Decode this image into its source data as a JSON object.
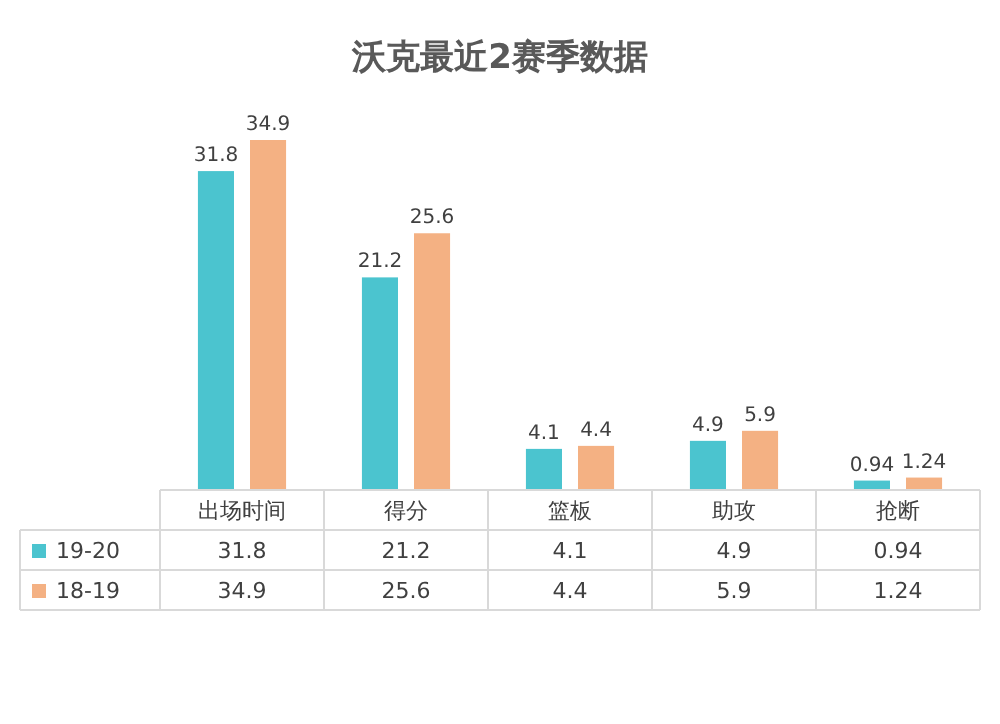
{
  "chart_data": {
    "type": "bar",
    "title": "沃克最近2赛季数据",
    "categories": [
      "出场时间",
      "得分",
      "篮板",
      "助攻",
      "抢断"
    ],
    "series": [
      {
        "name": "19-20",
        "color": "#4bc4cf",
        "values": [
          31.8,
          21.2,
          4.1,
          4.9,
          0.94
        ],
        "value_labels": [
          "31.8",
          "21.2",
          "4.1",
          "4.9",
          "0.94"
        ]
      },
      {
        "name": "18-19",
        "color": "#f4b183",
        "values": [
          34.9,
          25.6,
          4.4,
          5.9,
          1.24
        ],
        "value_labels": [
          "34.9",
          "25.6",
          "4.4",
          "5.9",
          "1.24"
        ]
      }
    ],
    "data_labels": true,
    "legend": "bottom"
  }
}
